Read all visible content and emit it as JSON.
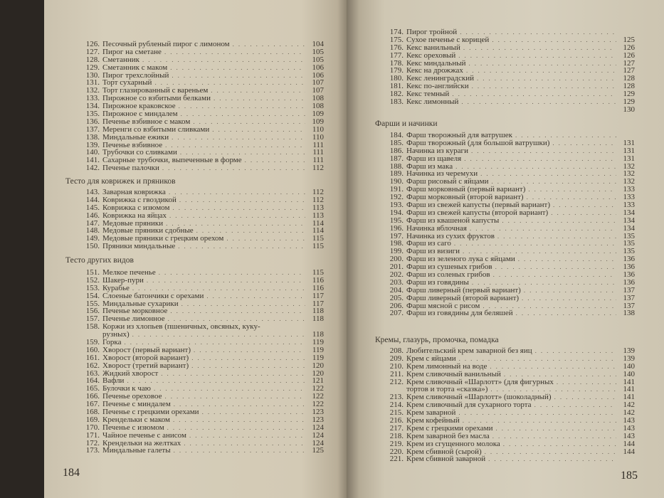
{
  "left_page": {
    "folio": "184",
    "sections": [
      {
        "heading": "",
        "entries": [
          [
            "126.",
            "Песочный рубленый пирог с лимоном",
            "104"
          ],
          [
            "127.",
            "Пирог на сметане",
            "105"
          ],
          [
            "128.",
            "Сметанник",
            "105"
          ],
          [
            "129.",
            "Сметанник с маком",
            "106"
          ],
          [
            "130.",
            "Пирог трехслойный",
            "106"
          ],
          [
            "131.",
            "Торт сухарный",
            "107"
          ],
          [
            "132.",
            "Торт глазированный с вареньем",
            "107"
          ],
          [
            "133.",
            "Пирожное со взбитыми белками",
            "108"
          ],
          [
            "134.",
            "Пирожное краковское",
            "108"
          ],
          [
            "135.",
            "Пирожное с миндалем",
            "109"
          ],
          [
            "136.",
            "Печенье взбивное с маком",
            "109"
          ],
          [
            "137.",
            "Меренги со взбитыми сливками",
            "110"
          ],
          [
            "138.",
            "Миндальные ежики",
            "110"
          ],
          [
            "139.",
            "Печенье взбивное",
            "111"
          ],
          [
            "140.",
            "Трубочки со сливками",
            "111"
          ],
          [
            "141.",
            "Сахарные трубочки, выпеченные в форме",
            "111"
          ],
          [
            "142.",
            "Печенье палочки",
            "112"
          ]
        ]
      },
      {
        "heading": "Тесто для коврижек и пряников",
        "entries": [
          [
            "143.",
            "Заварная коврижка",
            "112"
          ],
          [
            "144.",
            "Коврижка с гвоздикой",
            "112"
          ],
          [
            "145.",
            "Коврижка с изюмом",
            "113"
          ],
          [
            "146.",
            "Коврижка на яйцах",
            "113"
          ],
          [
            "147.",
            "Медовые пряники",
            "114"
          ],
          [
            "148.",
            "Медовые пряники сдобные",
            "114"
          ],
          [
            "149.",
            "Медовые пряники с грецким орехом",
            "115"
          ],
          [
            "150.",
            "Пряники миндальные",
            "115"
          ]
        ]
      },
      {
        "heading": "Тесто других видов",
        "entries": [
          [
            "151.",
            "Мелкое печенье",
            "115"
          ],
          [
            "152.",
            "Шакер-пури",
            "116"
          ],
          [
            "153.",
            "Курабье",
            "116"
          ],
          [
            "154.",
            "Слоеные батончики с орехами",
            "117"
          ],
          [
            "155.",
            "Миндальные сухарики",
            "117"
          ],
          [
            "156.",
            "Печенье морковное",
            "118"
          ],
          [
            "157.",
            "Печенье лимонное",
            "118"
          ],
          [
            "158.",
            "Коржи из хлопьев (пшеничных, овсяных, куку-",
            ""
          ],
          [
            "",
            "рузных)",
            "118"
          ],
          [
            "159.",
            "Горка",
            "119"
          ],
          [
            "160.",
            "Хворост (первый вариант)",
            "119"
          ],
          [
            "161.",
            "Хворост (второй вариант)",
            "119"
          ],
          [
            "162.",
            "Хворост (третий вариант)",
            "120"
          ],
          [
            "163.",
            "Жидкий хворост",
            "120"
          ],
          [
            "164.",
            "Вафли",
            "121"
          ],
          [
            "165.",
            "Булочки к чаю",
            "122"
          ],
          [
            "166.",
            "Печенье ореховое",
            "122"
          ],
          [
            "167.",
            "Печенье с миндалем",
            "122"
          ],
          [
            "168.",
            "Печенье с грецкими орехами",
            "123"
          ],
          [
            "169.",
            "Крендельки с маком",
            "123"
          ],
          [
            "170.",
            "Печенье с изюмом",
            "124"
          ],
          [
            "171.",
            "Чайное печенье с анисом",
            "124"
          ],
          [
            "172.",
            "Крендельки на желтках",
            "124"
          ],
          [
            "173.",
            "Миндальные галеты",
            "125"
          ]
        ]
      }
    ]
  },
  "right_page": {
    "folio": "185",
    "sections": [
      {
        "heading": "",
        "entries": [
          [
            "174.",
            "Пирог тройной",
            ""
          ],
          [
            "175.",
            "Сухое печенье с корицей",
            "125"
          ],
          [
            "176.",
            "Кекс ванильный",
            "126"
          ],
          [
            "177.",
            "Кекс ореховый",
            "126"
          ],
          [
            "178.",
            "Кекс миндальный",
            "127"
          ],
          [
            "179.",
            "Кекс на дрожжах",
            "127"
          ],
          [
            "180.",
            "Кекс ленинградский",
            "128"
          ],
          [
            "181.",
            "Кекс по-английски",
            "128"
          ],
          [
            "182.",
            "Кекс темный",
            "129"
          ],
          [
            "183.",
            "Кекс лимонный",
            "129"
          ],
          [
            "",
            "",
            "130"
          ]
        ]
      },
      {
        "heading": "Фарши и начинки",
        "entries": [
          [
            "184.",
            "Фарш творожный для ватрушек",
            ""
          ],
          [
            "185.",
            "Фарш творожный (для большой ватрушки)",
            "131"
          ],
          [
            "186.",
            "Начинка из кураги",
            "131"
          ],
          [
            "187.",
            "Фарш из щавеля",
            "131"
          ],
          [
            "188.",
            "Фарш из мака",
            "132"
          ],
          [
            "189.",
            "Начинка из черемухи",
            "132"
          ],
          [
            "190.",
            "Фарш рисовый с яйцами",
            "132"
          ],
          [
            "191.",
            "Фарш морковный (первый вариант)",
            "133"
          ],
          [
            "192.",
            "Фарш морковный (второй вариант)",
            "133"
          ],
          [
            "193.",
            "Фарш из свежей капусты (первый вариант)",
            "133"
          ],
          [
            "194.",
            "Фарш из свежей капусты (второй вариант)",
            "134"
          ],
          [
            "195.",
            "Фарш из квашеной капусты",
            "134"
          ],
          [
            "196.",
            "Начинка яблочная",
            "134"
          ],
          [
            "197.",
            "Начинка из сухих фруктов",
            "135"
          ],
          [
            "198.",
            "Фарш из саго",
            "135"
          ],
          [
            "199.",
            "Фарш из визиги",
            "135"
          ],
          [
            "200.",
            "Фарш из зеленого лука с яйцами",
            "136"
          ],
          [
            "201.",
            "Фарш из сушеных грибов",
            "136"
          ],
          [
            "202.",
            "Фарш из соленых грибов",
            "136"
          ],
          [
            "203.",
            "Фарш из говядины",
            "136"
          ],
          [
            "204.",
            "Фарш ливерный (первый вариант)",
            "137"
          ],
          [
            "205.",
            "Фарш ливерный (второй вариант)",
            "137"
          ],
          [
            "206.",
            "Фарш мясной с рисом",
            "137"
          ],
          [
            "207.",
            "Фарш из говядины для беляшей",
            "138"
          ]
        ]
      },
      {
        "heading": "Кремы, глазурь, промочка, помадка",
        "entries": [
          [
            "208.",
            "Любительский крем заварной без яиц",
            "139"
          ],
          [
            "209.",
            "Крем с яйцами",
            "139"
          ],
          [
            "210.",
            "Крем лимонный на воде",
            "140"
          ],
          [
            "211.",
            "Крем сливочный ванильный",
            "140"
          ],
          [
            "212.",
            "Крем сливочный «Шарлотт» (для фигурных",
            "141"
          ],
          [
            "",
            "тортов и торта «сказка»)",
            "141"
          ],
          [
            "213.",
            "Крем сливочный «Шарлотт» (шоколадный)",
            "141"
          ],
          [
            "214.",
            "Крем сливочный для сухарного торта",
            "142"
          ],
          [
            "215.",
            "Крем заварной",
            "142"
          ],
          [
            "216.",
            "Крем кофейный",
            "143"
          ],
          [
            "217.",
            "Крем с грецкими орехами",
            "143"
          ],
          [
            "218.",
            "Крем заварной без масла",
            "143"
          ],
          [
            "219.",
            "Крем из сгущенного молока",
            "144"
          ],
          [
            "220.",
            "Крем сбивной (сырой)",
            "144"
          ],
          [
            "221.",
            "Крем сбивной заварной",
            ""
          ]
        ]
      }
    ]
  }
}
